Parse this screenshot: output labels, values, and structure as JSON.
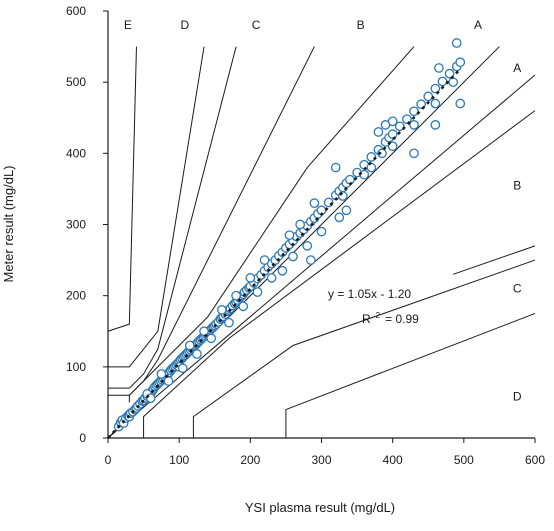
{
  "chart_data": {
    "type": "scatter",
    "title": "",
    "xlabel": "YSI plasma result (mg/dL)",
    "ylabel": "Meter result (mg/dL)",
    "xlim": [
      0,
      600
    ],
    "ylim": [
      0,
      600
    ],
    "xticks": [
      "0",
      "100",
      "200",
      "300",
      "400",
      "500",
      "600"
    ],
    "yticks": [
      "0",
      "100",
      "200",
      "300",
      "400",
      "500",
      "600"
    ],
    "grid": false,
    "legend": "none",
    "annotation": {
      "equation": "y = 1.05x - 1.20",
      "r2_label": "R",
      "r2_sup": "2",
      "r2_value": "= 0.99"
    },
    "fit_line": {
      "slope": 1.05,
      "intercept": -1.2,
      "x_start": 0,
      "x_end": 495
    },
    "zone_labels": [
      {
        "text": "E",
        "x": 28,
        "y": 580
      },
      {
        "text": "D",
        "x": 108,
        "y": 580
      },
      {
        "text": "C",
        "x": 208,
        "y": 580
      },
      {
        "text": "B",
        "x": 355,
        "y": 580
      },
      {
        "text": "A",
        "x": 520,
        "y": 580
      },
      {
        "text": "A",
        "x": 575,
        "y": 520
      },
      {
        "text": "B",
        "x": 575,
        "y": 355
      },
      {
        "text": "C",
        "x": 575,
        "y": 210
      },
      {
        "text": "D",
        "x": 575,
        "y": 58
      }
    ],
    "zone_boundaries": [
      [
        [
          0,
          0
        ],
        [
          50,
          50
        ],
        [
          170,
          170
        ],
        [
          385,
          385
        ],
        [
          550,
          550
        ]
      ],
      [
        [
          0,
          0
        ],
        [
          58,
          50
        ],
        [
          170,
          145
        ],
        [
          385,
          328
        ],
        [
          600,
          510
        ]
      ],
      [
        [
          30,
          50
        ],
        [
          30,
          60
        ],
        [
          140,
          170
        ],
        [
          280,
          380
        ],
        [
          430,
          550
        ]
      ],
      [
        [
          50,
          0
        ],
        [
          50,
          30
        ],
        [
          170,
          140
        ],
        [
          385,
          300
        ],
        [
          600,
          460
        ]
      ],
      [
        [
          120,
          0
        ],
        [
          120,
          30
        ],
        [
          260,
          130
        ],
        [
          600,
          250
        ]
      ],
      [
        [
          0,
          60
        ],
        [
          30,
          60
        ],
        [
          50,
          80
        ],
        [
          70,
          110
        ],
        [
          290,
          550
        ]
      ],
      [
        [
          0,
          70
        ],
        [
          30,
          70
        ],
        [
          50,
          90
        ],
        [
          70,
          125
        ],
        [
          180,
          550
        ]
      ],
      [
        [
          0,
          100
        ],
        [
          30,
          100
        ],
        [
          50,
          125
        ],
        [
          70,
          150
        ],
        [
          135,
          550
        ]
      ],
      [
        [
          250,
          0
        ],
        [
          250,
          40
        ],
        [
          600,
          175
        ]
      ],
      [
        [
          0,
          150
        ],
        [
          30,
          160
        ],
        [
          40,
          550
        ]
      ],
      [
        [
          485,
          230
        ],
        [
          600,
          270
        ]
      ]
    ],
    "points": [
      [
        15,
        16
      ],
      [
        18,
        22
      ],
      [
        20,
        25
      ],
      [
        22,
        21
      ],
      [
        25,
        28
      ],
      [
        28,
        31
      ],
      [
        30,
        33
      ],
      [
        30,
        30
      ],
      [
        32,
        35
      ],
      [
        35,
        37
      ],
      [
        38,
        40
      ],
      [
        40,
        42
      ],
      [
        42,
        45
      ],
      [
        45,
        48
      ],
      [
        48,
        52
      ],
      [
        50,
        53
      ],
      [
        52,
        56
      ],
      [
        55,
        59
      ],
      [
        58,
        62
      ],
      [
        60,
        63
      ],
      [
        62,
        66
      ],
      [
        64,
        69
      ],
      [
        66,
        72
      ],
      [
        68,
        74
      ],
      [
        70,
        76
      ],
      [
        72,
        78
      ],
      [
        74,
        80
      ],
      [
        76,
        82
      ],
      [
        78,
        84
      ],
      [
        80,
        86
      ],
      [
        82,
        88
      ],
      [
        84,
        90
      ],
      [
        86,
        92
      ],
      [
        88,
        95
      ],
      [
        90,
        97
      ],
      [
        92,
        99
      ],
      [
        94,
        101
      ],
      [
        96,
        103
      ],
      [
        98,
        105
      ],
      [
        100,
        107
      ],
      [
        102,
        110
      ],
      [
        104,
        112
      ],
      [
        106,
        114
      ],
      [
        108,
        116
      ],
      [
        110,
        118
      ],
      [
        112,
        120
      ],
      [
        114,
        122
      ],
      [
        116,
        124
      ],
      [
        118,
        126
      ],
      [
        120,
        128
      ],
      [
        122,
        130
      ],
      [
        124,
        132
      ],
      [
        126,
        134
      ],
      [
        128,
        136
      ],
      [
        130,
        138
      ],
      [
        132,
        140
      ],
      [
        134,
        142
      ],
      [
        136,
        144
      ],
      [
        138,
        146
      ],
      [
        140,
        148
      ],
      [
        142,
        150
      ],
      [
        144,
        152
      ],
      [
        146,
        154
      ],
      [
        148,
        156
      ],
      [
        150,
        158
      ],
      [
        152,
        160
      ],
      [
        155,
        163
      ],
      [
        158,
        167
      ],
      [
        160,
        169
      ],
      [
        162,
        171
      ],
      [
        165,
        174
      ],
      [
        168,
        178
      ],
      [
        170,
        180
      ],
      [
        172,
        182
      ],
      [
        175,
        186
      ],
      [
        178,
        189
      ],
      [
        180,
        191
      ],
      [
        182,
        194
      ],
      [
        185,
        197
      ],
      [
        188,
        200
      ],
      [
        190,
        202
      ],
      [
        192,
        205
      ],
      [
        195,
        208
      ],
      [
        198,
        211
      ],
      [
        200,
        213
      ],
      [
        205,
        218
      ],
      [
        210,
        224
      ],
      [
        215,
        229
      ],
      [
        220,
        235
      ],
      [
        225,
        240
      ],
      [
        230,
        245
      ],
      [
        235,
        250
      ],
      [
        240,
        256
      ],
      [
        245,
        261
      ],
      [
        250,
        267
      ],
      [
        255,
        272
      ],
      [
        260,
        277
      ],
      [
        265,
        283
      ],
      [
        270,
        288
      ],
      [
        275,
        293
      ],
      [
        280,
        298
      ],
      [
        285,
        304
      ],
      [
        290,
        309
      ],
      [
        295,
        315
      ],
      [
        300,
        320
      ],
      [
        310,
        331
      ],
      [
        320,
        341
      ],
      [
        325,
        347
      ],
      [
        330,
        352
      ],
      [
        335,
        358
      ],
      [
        340,
        363
      ],
      [
        350,
        373
      ],
      [
        360,
        384
      ],
      [
        370,
        395
      ],
      [
        380,
        405
      ],
      [
        390,
        416
      ],
      [
        395,
        422
      ],
      [
        400,
        427
      ],
      [
        410,
        438
      ],
      [
        420,
        448
      ],
      [
        430,
        459
      ],
      [
        440,
        469
      ],
      [
        450,
        480
      ],
      [
        460,
        491
      ],
      [
        470,
        501
      ],
      [
        480,
        512
      ],
      [
        490,
        522
      ],
      [
        495,
        528
      ],
      [
        55,
        62
      ],
      [
        60,
        56
      ],
      [
        75,
        90
      ],
      [
        85,
        80
      ],
      [
        100,
        100
      ],
      [
        105,
        98
      ],
      [
        115,
        130
      ],
      [
        125,
        118
      ],
      [
        135,
        150
      ],
      [
        145,
        140
      ],
      [
        160,
        180
      ],
      [
        170,
        162
      ],
      [
        180,
        200
      ],
      [
        190,
        185
      ],
      [
        200,
        225
      ],
      [
        210,
        205
      ],
      [
        220,
        250
      ],
      [
        230,
        225
      ],
      [
        245,
        235
      ],
      [
        255,
        285
      ],
      [
        260,
        255
      ],
      [
        270,
        300
      ],
      [
        280,
        270
      ],
      [
        285,
        250
      ],
      [
        290,
        330
      ],
      [
        300,
        290
      ],
      [
        320,
        380
      ],
      [
        325,
        310
      ],
      [
        330,
        340
      ],
      [
        335,
        320
      ],
      [
        360,
        370
      ],
      [
        370,
        380
      ],
      [
        380,
        430
      ],
      [
        385,
        400
      ],
      [
        390,
        440
      ],
      [
        400,
        410
      ],
      [
        400,
        445
      ],
      [
        430,
        400
      ],
      [
        430,
        440
      ],
      [
        460,
        440
      ],
      [
        460,
        470
      ],
      [
        465,
        520
      ],
      [
        490,
        555
      ],
      [
        495,
        470
      ],
      [
        485,
        500
      ]
    ]
  }
}
